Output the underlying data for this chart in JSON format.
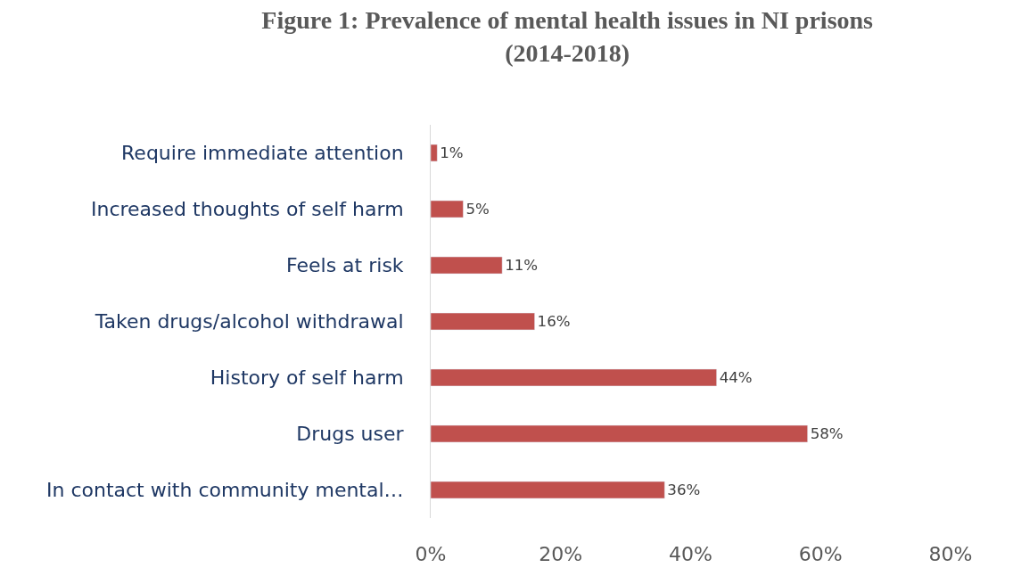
{
  "chart_data": {
    "type": "bar",
    "orientation": "horizontal",
    "title": "Figure 1: Prevalence of mental health issues in NI prisons\n(2014-2018)",
    "categories": [
      "Require immediate attention",
      "Increased thoughts of self harm",
      "Feels at risk",
      "Taken drugs/alcohol withdrawal",
      "History of self harm",
      "Drugs user",
      "In contact with community mental…"
    ],
    "values": [
      1,
      5,
      11,
      16,
      44,
      58,
      36
    ],
    "value_labels": [
      "1%",
      "5%",
      "11%",
      "16%",
      "44%",
      "58%",
      "36%"
    ],
    "color": "#c0504d",
    "xlim": [
      0,
      80
    ],
    "xticks": [
      {
        "value": 0,
        "label": "0%"
      },
      {
        "value": 20,
        "label": "20%"
      },
      {
        "value": 40,
        "label": "40%"
      },
      {
        "value": 60,
        "label": "60%"
      },
      {
        "value": 80,
        "label": "80%"
      }
    ],
    "legend": false
  }
}
